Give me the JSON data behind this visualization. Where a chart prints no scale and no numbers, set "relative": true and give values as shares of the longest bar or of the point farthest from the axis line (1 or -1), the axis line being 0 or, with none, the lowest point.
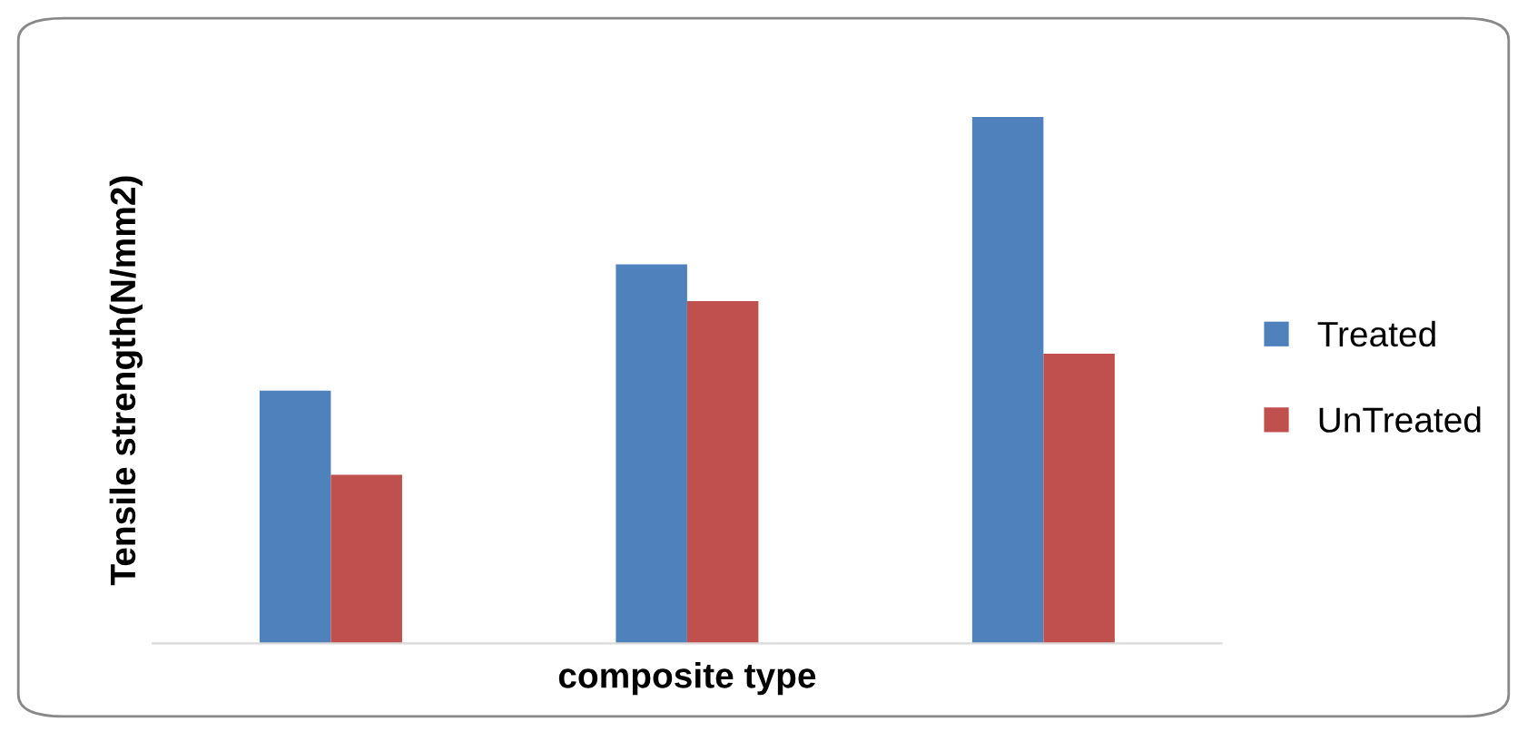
{
  "chart_data": {
    "type": "bar",
    "relative": true,
    "ylabel": "Tensile strength(N/mm2)",
    "xlabel": "composite type",
    "categories": [
      null,
      null,
      null
    ],
    "series": [
      {
        "name": "Treated",
        "color": "#4f81bd",
        "values": [
          0.48,
          0.72,
          1.0
        ]
      },
      {
        "name": "UnTreated",
        "color": "#c0504d",
        "values": [
          0.32,
          0.65,
          0.55
        ]
      }
    ],
    "legend": "right",
    "grid": false
  }
}
